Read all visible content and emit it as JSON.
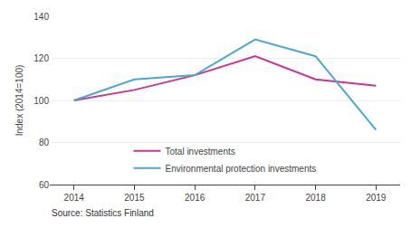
{
  "chart_data": {
    "type": "line",
    "x": [
      2014,
      2015,
      2016,
      2017,
      2018,
      2019
    ],
    "series": [
      {
        "name": "Total investments",
        "color": "#cc3399",
        "values": [
          100,
          105,
          112,
          121,
          110,
          107
        ]
      },
      {
        "name": "Environmental protection investments",
        "color": "#4da6d4",
        "values": [
          100,
          110,
          112,
          129,
          121,
          86
        ]
      }
    ],
    "ylabel": "Index (2014=100)",
    "ylim": [
      60,
      140
    ],
    "yticks": [
      60,
      80,
      100,
      120,
      140
    ],
    "xlim": [
      2013.6,
      2019.4
    ],
    "xticks": [
      2014,
      2015,
      2016,
      2017,
      2018,
      2019
    ],
    "grid": "y",
    "legend": "lower center",
    "annotations": [
      "Source: Statistics Finland"
    ]
  }
}
